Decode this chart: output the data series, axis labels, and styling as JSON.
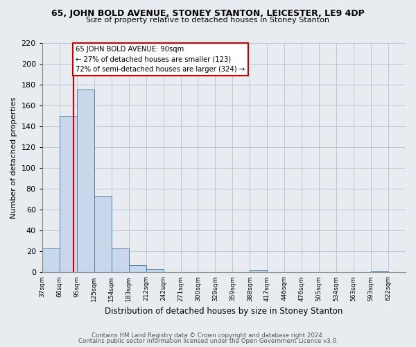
{
  "title1": "65, JOHN BOLD AVENUE, STONEY STANTON, LEICESTER, LE9 4DP",
  "title2": "Size of property relative to detached houses in Stoney Stanton",
  "xlabel": "Distribution of detached houses by size in Stoney Stanton",
  "ylabel": "Number of detached properties",
  "bin_labels": [
    "37sqm",
    "66sqm",
    "95sqm",
    "125sqm",
    "154sqm",
    "183sqm",
    "212sqm",
    "242sqm",
    "271sqm",
    "300sqm",
    "329sqm",
    "359sqm",
    "388sqm",
    "417sqm",
    "446sqm",
    "476sqm",
    "505sqm",
    "534sqm",
    "563sqm",
    "593sqm",
    "622sqm"
  ],
  "bar_values": [
    23,
    150,
    175,
    73,
    23,
    7,
    3,
    0,
    0,
    0,
    0,
    0,
    2,
    0,
    0,
    0,
    0,
    0,
    0,
    1,
    0
  ],
  "bar_color": "#c8d8ea",
  "bar_edge_color": "#5080a8",
  "property_size_sqm": 90,
  "property_label": "65 JOHN BOLD AVENUE: 90sqm",
  "annotation_line1": "← 27% of detached houses are smaller (123)",
  "annotation_line2": "72% of semi-detached houses are larger (324) →",
  "vline_color": "#cc0000",
  "box_edge_color": "#cc0000",
  "ylim": [
    0,
    220
  ],
  "yticks": [
    0,
    20,
    40,
    60,
    80,
    100,
    120,
    140,
    160,
    180,
    200,
    220
  ],
  "bin_edges_values": [
    37,
    66,
    95,
    125,
    154,
    183,
    212,
    242,
    271,
    300,
    329,
    359,
    388,
    417,
    446,
    476,
    505,
    534,
    563,
    593,
    622
  ],
  "footer1": "Contains HM Land Registry data © Crown copyright and database right 2024.",
  "footer2": "Contains public sector information licensed under the Open Government Licence v3.0.",
  "bg_color": "#e8ecf0",
  "plot_bg_color": "#e8ecf0"
}
